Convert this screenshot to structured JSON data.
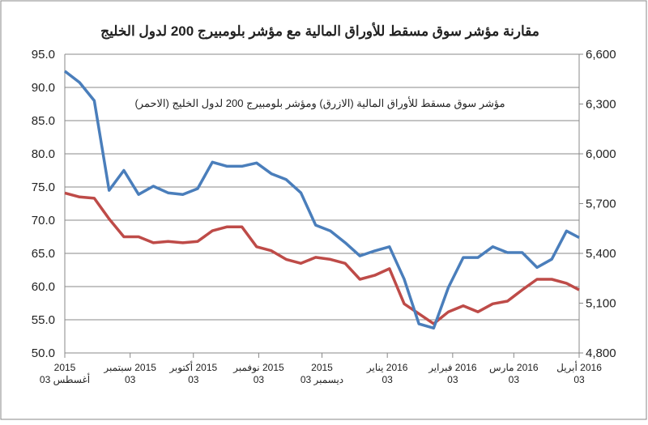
{
  "chart_data": {
    "type": "line",
    "title": "مقارنة مؤشر سوق مسقط للأوراق المالية مع مؤشر بلومبيرج 200 لدول الخليج",
    "subtitle": "مؤشر سوق مسقط للأوراق المالية (الازرق) ومؤشر بلومبيرج 200 لدول الخليج (الاحمر)",
    "x": [
      "2015-08-03",
      "2015-08-10",
      "2015-08-17",
      "2015-08-24",
      "2015-08-31",
      "2015-09-07",
      "2015-09-14",
      "2015-09-21",
      "2015-09-28",
      "2015-10-05",
      "2015-10-12",
      "2015-10-19",
      "2015-10-26",
      "2015-11-02",
      "2015-11-09",
      "2015-11-16",
      "2015-11-23",
      "2015-11-30",
      "2015-12-07",
      "2015-12-14",
      "2015-12-21",
      "2015-12-28",
      "2016-01-04",
      "2016-01-11",
      "2016-01-18",
      "2016-01-25",
      "2016-02-01",
      "2016-02-08",
      "2016-02-15",
      "2016-02-22",
      "2016-02-29",
      "2016-03-07",
      "2016-03-14",
      "2016-03-21",
      "2016-03-28",
      "2016-04-03"
    ],
    "xlim": [
      "2015-08-03",
      "2016-04-03"
    ],
    "xticks": [
      {
        "value": "2015-08-03",
        "label": [
          "2015",
          "أغسطس 03"
        ]
      },
      {
        "value": "2015-09-03",
        "label": [
          "2015 سبتمبر",
          "03"
        ]
      },
      {
        "value": "2015-10-03",
        "label": [
          "2015 أكتوبر",
          "03"
        ]
      },
      {
        "value": "2015-11-03",
        "label": [
          "2015 نوفمبر",
          "03"
        ]
      },
      {
        "value": "2015-12-03",
        "label": [
          "2015",
          "ديسمبر 03"
        ]
      },
      {
        "value": "2016-01-03",
        "label": [
          "2016 يناير",
          "03"
        ]
      },
      {
        "value": "2016-02-03",
        "label": [
          "2016 فبراير",
          "03"
        ]
      },
      {
        "value": "2016-03-03",
        "label": [
          "2016 مارس",
          "03"
        ]
      },
      {
        "value": "2016-04-03",
        "label": [
          "2016 أبريل",
          "03"
        ]
      }
    ],
    "ylim": [
      50,
      95
    ],
    "yticks": [
      {
        "value": 50,
        "label": "50.0"
      },
      {
        "value": 55,
        "label": "55.0"
      },
      {
        "value": 60,
        "label": "60.0"
      },
      {
        "value": 65,
        "label": "65.0"
      },
      {
        "value": 70,
        "label": "70.0"
      },
      {
        "value": 75,
        "label": "75.0"
      },
      {
        "value": 80,
        "label": "80.0"
      },
      {
        "value": 85,
        "label": "85.0"
      },
      {
        "value": 90,
        "label": "90.0"
      },
      {
        "value": 95,
        "label": "95.0"
      }
    ],
    "y2lim": [
      4800,
      6600
    ],
    "y2ticks": [
      {
        "value": 4800,
        "label": "4,800"
      },
      {
        "value": 5100,
        "label": "5,100"
      },
      {
        "value": 5400,
        "label": "5,400"
      },
      {
        "value": 5700,
        "label": "5,700"
      },
      {
        "value": 6000,
        "label": "6,000"
      },
      {
        "value": 6300,
        "label": "6,300"
      },
      {
        "value": 6600,
        "label": "6,600"
      }
    ],
    "grid": true,
    "series": [
      {
        "color": "#be4b48",
        "values": [
          74.1,
          73.5,
          73.3,
          70.2,
          67.5,
          67.5,
          66.6,
          66.8,
          66.6,
          66.8,
          68.4,
          69.0,
          69.0,
          66.0,
          65.4,
          64.1,
          63.5,
          64.4,
          64.1,
          63.5,
          61.1,
          61.7,
          62.7,
          57.4,
          55.9,
          54.4,
          56.2,
          57.1,
          56.2,
          57.4,
          57.8,
          59.5,
          61.1,
          61.1,
          60.5,
          59.5
        ]
      },
      {
        "color": "#4a7ebb",
        "axis": "y2",
        "values": [
          6498,
          6430,
          6320,
          5780,
          5900,
          5755,
          5805,
          5765,
          5755,
          5790,
          5950,
          5925,
          5925,
          5945,
          5880,
          5845,
          5765,
          5570,
          5535,
          5465,
          5385,
          5415,
          5440,
          5245,
          4975,
          4950,
          5195,
          5375,
          5375,
          5440,
          5405,
          5405,
          5315,
          5365,
          5535,
          5495
        ]
      }
    ]
  }
}
